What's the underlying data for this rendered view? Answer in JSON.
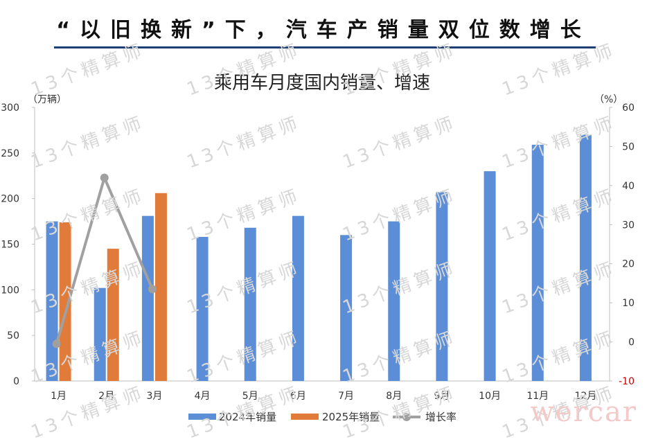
{
  "headline": "“以旧换新”下，汽车产销量双位数增长",
  "watermark": "13个精算师",
  "corner_watermark": "wercar",
  "chart_data": {
    "type": "bar",
    "title": "乘用车月度国内销量、增速",
    "y_left_label": "（万辆）",
    "y_right_label": "（%）",
    "ylim_left": [
      0,
      300
    ],
    "ylim_right": [
      -10,
      60
    ],
    "left_ticks": [
      0,
      50,
      100,
      150,
      200,
      250,
      300
    ],
    "right_ticks": [
      -10,
      0,
      10,
      20,
      30,
      40,
      50,
      60
    ],
    "categories": [
      "1月",
      "2月",
      "3月",
      "4月",
      "5月",
      "6月",
      "7月",
      "8月",
      "9月",
      "10月",
      "11月",
      "12月"
    ],
    "series": [
      {
        "name": "2024年销量",
        "type": "bar",
        "axis": "left",
        "color": "#5b8ed6",
        "values": [
          175,
          102,
          181,
          158,
          168,
          181,
          160,
          175,
          207,
          230,
          259,
          270
        ]
      },
      {
        "name": "2025年销量",
        "type": "bar",
        "axis": "left",
        "color": "#e07b39",
        "values": [
          174,
          145,
          206,
          null,
          null,
          null,
          null,
          null,
          null,
          null,
          null,
          null
        ]
      },
      {
        "name": "增长率",
        "type": "line",
        "axis": "right",
        "color": "#a0a0a0",
        "values": [
          -0.5,
          42,
          13.5,
          null,
          null,
          null,
          null,
          null,
          null,
          null,
          null,
          null
        ]
      }
    ],
    "negative_tick_color": "#c00000",
    "grid": false,
    "legend_position": "bottom"
  }
}
